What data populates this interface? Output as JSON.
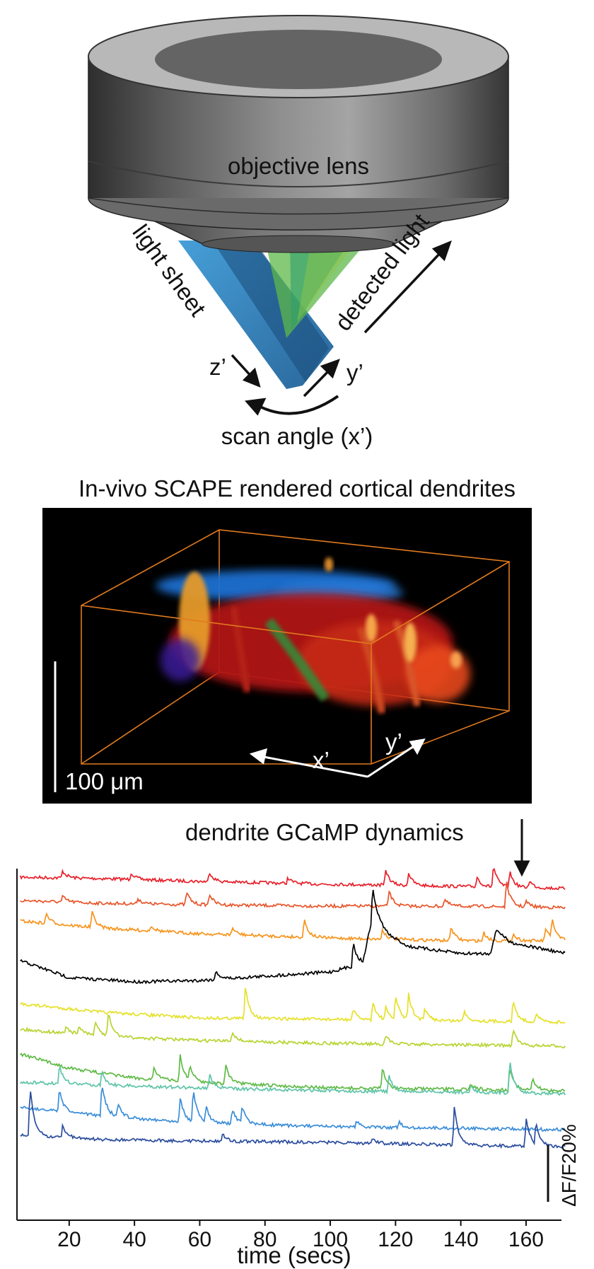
{
  "diagram": {
    "objective_label": "objective lens",
    "light_sheet_label": "light sheet",
    "detected_light_label": "detected light",
    "z_label": "z’",
    "y_label": "y’",
    "scan_label": "scan angle (x’)"
  },
  "render": {
    "title": "In-vivo SCAPE rendered cortical dendrites",
    "scalebar_label": "100 μm",
    "x_axis_label": "x’",
    "y_axis_label": "y’"
  },
  "traces": {
    "header": "dendrite GCaMP dynamics",
    "xlabel": "time (secs)",
    "xticks": [
      "20",
      "40",
      "60",
      "80",
      "100",
      "120",
      "140",
      "160"
    ],
    "scale_label": "ΔF/F20%"
  },
  "chart_data": {
    "type": "line",
    "xlabel": "time (secs)",
    "ylabel": "",
    "xlim": [
      4,
      172
    ],
    "xticks": [
      20,
      40,
      60,
      80,
      100,
      120,
      140,
      160
    ],
    "scale_bar": "ΔF/F20%",
    "series": [
      {
        "color": "#e8202a",
        "baseline": [
          [
            5,
            0
          ],
          [
            30,
            2
          ],
          [
            60,
            6
          ],
          [
            100,
            10
          ],
          [
            140,
            13
          ],
          [
            172,
            16
          ]
        ],
        "spikes": [
          [
            18,
            10
          ],
          [
            39,
            10
          ],
          [
            63,
            14
          ],
          [
            87,
            8
          ],
          [
            117,
            22
          ],
          [
            124,
            18
          ],
          [
            145,
            14
          ],
          [
            150,
            30
          ],
          [
            155,
            22
          ],
          [
            161,
            10
          ]
        ]
      },
      {
        "color": "#e8552a",
        "baseline": [
          [
            5,
            0
          ],
          [
            30,
            4
          ],
          [
            60,
            6
          ],
          [
            100,
            8
          ],
          [
            140,
            8
          ],
          [
            172,
            10
          ]
        ],
        "spikes": [
          [
            18,
            8
          ],
          [
            41,
            8
          ],
          [
            56,
            18
          ],
          [
            63,
            16
          ],
          [
            118,
            22
          ],
          [
            135,
            10
          ],
          [
            154,
            36
          ],
          [
            160,
            8
          ]
        ]
      },
      {
        "color": "#f7941d",
        "baseline": [
          [
            5,
            0
          ],
          [
            30,
            10
          ],
          [
            60,
            18
          ],
          [
            100,
            24
          ],
          [
            140,
            28
          ],
          [
            172,
            28
          ]
        ],
        "spikes": [
          [
            13,
            14
          ],
          [
            27,
            22
          ],
          [
            45,
            8
          ],
          [
            70,
            10
          ],
          [
            92,
            26
          ],
          [
            116,
            14
          ],
          [
            137,
            20
          ],
          [
            147,
            12
          ],
          [
            156,
            10
          ],
          [
            166,
            18
          ],
          [
            168,
            28
          ]
        ]
      },
      {
        "color": "#000000",
        "baseline": [
          [
            5,
            0
          ],
          [
            20,
            24
          ],
          [
            40,
            30
          ],
          [
            60,
            28
          ],
          [
            80,
            22
          ],
          [
            100,
            16
          ],
          [
            110,
            4
          ],
          [
            113,
            -64
          ],
          [
            118,
            -36
          ],
          [
            124,
            -20
          ],
          [
            140,
            -10
          ],
          [
            149,
            -10
          ],
          [
            151,
            -44
          ],
          [
            155,
            -26
          ],
          [
            172,
            -10
          ]
        ],
        "spikes": [
          [
            65,
            12
          ],
          [
            107,
            34
          ],
          [
            113,
            40
          ]
        ]
      },
      {
        "color": "#e5e12a",
        "baseline": [
          [
            5,
            0
          ],
          [
            30,
            12
          ],
          [
            60,
            20
          ],
          [
            100,
            22
          ],
          [
            140,
            24
          ],
          [
            172,
            26
          ]
        ],
        "spikes": [
          [
            74,
            46
          ],
          [
            107,
            14
          ],
          [
            113,
            26
          ],
          [
            117,
            16
          ],
          [
            120,
            34
          ],
          [
            124,
            36
          ],
          [
            129,
            16
          ],
          [
            141,
            14
          ],
          [
            156,
            30
          ],
          [
            163,
            12
          ]
        ]
      },
      {
        "color": "#b6d432",
        "baseline": [
          [
            5,
            0
          ],
          [
            30,
            10
          ],
          [
            60,
            16
          ],
          [
            100,
            20
          ],
          [
            140,
            22
          ],
          [
            172,
            24
          ]
        ],
        "spikes": [
          [
            19,
            10
          ],
          [
            23,
            12
          ],
          [
            28,
            22
          ],
          [
            32,
            34
          ],
          [
            70,
            14
          ],
          [
            117,
            12
          ],
          [
            156,
            24
          ]
        ]
      },
      {
        "color": "#5fba46",
        "baseline": [
          [
            5,
            0
          ],
          [
            20,
            20
          ],
          [
            40,
            34
          ],
          [
            60,
            40
          ],
          [
            100,
            48
          ],
          [
            140,
            50
          ],
          [
            172,
            52
          ]
        ],
        "spikes": [
          [
            46,
            18
          ],
          [
            54,
            36
          ],
          [
            57,
            20
          ],
          [
            68,
            26
          ],
          [
            116,
            30
          ],
          [
            143,
            10
          ],
          [
            155,
            34
          ],
          [
            162,
            16
          ]
        ]
      },
      {
        "color": "#5ec4a8",
        "baseline": [
          [
            5,
            0
          ],
          [
            30,
            4
          ],
          [
            60,
            8
          ],
          [
            100,
            12
          ],
          [
            140,
            14
          ],
          [
            172,
            16
          ]
        ],
        "spikes": [
          [
            17,
            26
          ],
          [
            30,
            20
          ],
          [
            63,
            20
          ],
          [
            118,
            22
          ],
          [
            143,
            8
          ],
          [
            155,
            46
          ]
        ]
      },
      {
        "color": "#3a8dd8",
        "baseline": [
          [
            5,
            0
          ],
          [
            20,
            8
          ],
          [
            40,
            16
          ],
          [
            60,
            22
          ],
          [
            100,
            28
          ],
          [
            140,
            30
          ],
          [
            172,
            32
          ]
        ],
        "spikes": [
          [
            17,
            30
          ],
          [
            30,
            48
          ],
          [
            35,
            18
          ],
          [
            54,
            34
          ],
          [
            58,
            46
          ],
          [
            62,
            20
          ],
          [
            70,
            20
          ],
          [
            73,
            24
          ],
          [
            108,
            10
          ],
          [
            121,
            8
          ]
        ]
      },
      {
        "color": "#2b4d9e",
        "baseline": [
          [
            5,
            0
          ],
          [
            30,
            6
          ],
          [
            60,
            8
          ],
          [
            100,
            10
          ],
          [
            140,
            14
          ],
          [
            172,
            16
          ]
        ],
        "spikes": [
          [
            8,
            70
          ],
          [
            18,
            18
          ],
          [
            67,
            10
          ],
          [
            113,
            8
          ],
          [
            138,
            56
          ],
          [
            160,
            40
          ],
          [
            163,
            32
          ]
        ]
      }
    ]
  }
}
